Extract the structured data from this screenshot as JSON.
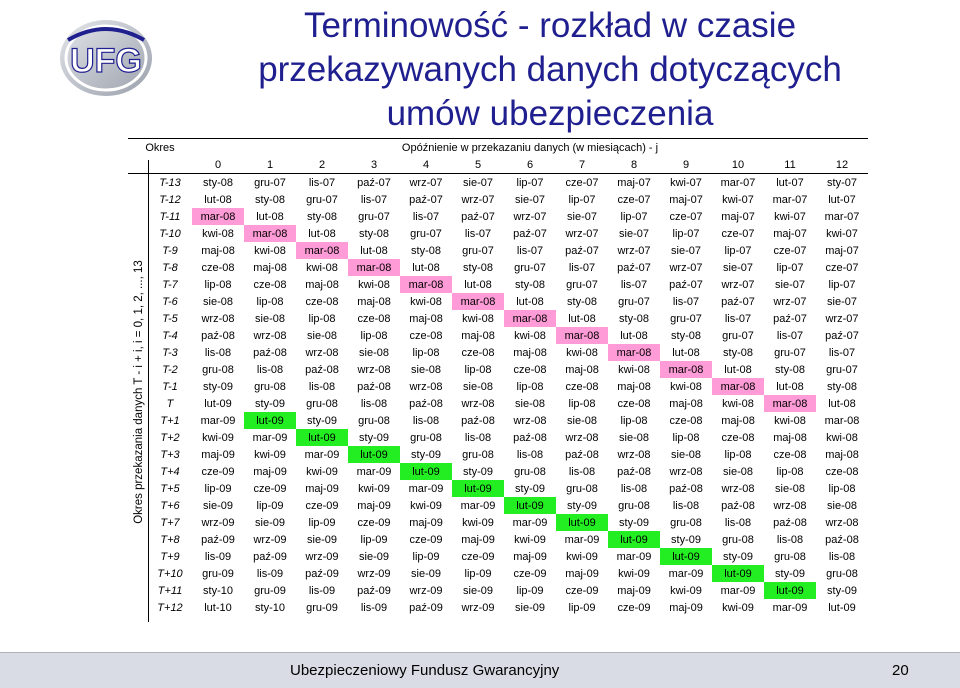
{
  "title_lines": [
    "Terminowość - rozkład w czasie",
    "przekazywanych danych dotyczących",
    "umów ubezpieczenia"
  ],
  "logo_text": "UFG",
  "colors": {
    "title": "#1f1f8f",
    "pink": "#ff9bd6",
    "green": "#22ee22"
  },
  "table": {
    "okres_header": "Okres",
    "delay_header": "Opóźnienie w przekazaniu danych (w miesiącach)  - j",
    "y_axis_label": "Okres przekazania danych T - i + i, i = 0, 1, 2, ..., 13",
    "columns": [
      "0",
      "1",
      "2",
      "3",
      "4",
      "5",
      "6",
      "7",
      "8",
      "9",
      "10",
      "11",
      "12"
    ],
    "rows": [
      {
        "label": "T-13",
        "cells": [
          "sty-08",
          "gru-07",
          "lis-07",
          "paź-07",
          "wrz-07",
          "sie-07",
          "lip-07",
          "cze-07",
          "maj-07",
          "kwi-07",
          "mar-07",
          "lut-07",
          "sty-07"
        ]
      },
      {
        "label": "T-12",
        "cells": [
          "lut-08",
          "sty-08",
          "gru-07",
          "lis-07",
          "paź-07",
          "wrz-07",
          "sie-07",
          "lip-07",
          "cze-07",
          "maj-07",
          "kwi-07",
          "mar-07",
          "lut-07"
        ]
      },
      {
        "label": "T-11",
        "cells": [
          "mar-08",
          "lut-08",
          "sty-08",
          "gru-07",
          "lis-07",
          "paź-07",
          "wrz-07",
          "sie-07",
          "lip-07",
          "cze-07",
          "maj-07",
          "kwi-07",
          "mar-07"
        ]
      },
      {
        "label": "T-10",
        "cells": [
          "kwi-08",
          "mar-08",
          "lut-08",
          "sty-08",
          "gru-07",
          "lis-07",
          "paź-07",
          "wrz-07",
          "sie-07",
          "lip-07",
          "cze-07",
          "maj-07",
          "kwi-07"
        ]
      },
      {
        "label": "T-9",
        "cells": [
          "maj-08",
          "kwi-08",
          "mar-08",
          "lut-08",
          "sty-08",
          "gru-07",
          "lis-07",
          "paź-07",
          "wrz-07",
          "sie-07",
          "lip-07",
          "cze-07",
          "maj-07"
        ]
      },
      {
        "label": "T-8",
        "cells": [
          "cze-08",
          "maj-08",
          "kwi-08",
          "mar-08",
          "lut-08",
          "sty-08",
          "gru-07",
          "lis-07",
          "paź-07",
          "wrz-07",
          "sie-07",
          "lip-07",
          "cze-07"
        ]
      },
      {
        "label": "T-7",
        "cells": [
          "lip-08",
          "cze-08",
          "maj-08",
          "kwi-08",
          "mar-08",
          "lut-08",
          "sty-08",
          "gru-07",
          "lis-07",
          "paź-07",
          "wrz-07",
          "sie-07",
          "lip-07"
        ]
      },
      {
        "label": "T-6",
        "cells": [
          "sie-08",
          "lip-08",
          "cze-08",
          "maj-08",
          "kwi-08",
          "mar-08",
          "lut-08",
          "sty-08",
          "gru-07",
          "lis-07",
          "paź-07",
          "wrz-07",
          "sie-07"
        ]
      },
      {
        "label": "T-5",
        "cells": [
          "wrz-08",
          "sie-08",
          "lip-08",
          "cze-08",
          "maj-08",
          "kwi-08",
          "mar-08",
          "lut-08",
          "sty-08",
          "gru-07",
          "lis-07",
          "paź-07",
          "wrz-07"
        ]
      },
      {
        "label": "T-4",
        "cells": [
          "paź-08",
          "wrz-08",
          "sie-08",
          "lip-08",
          "cze-08",
          "maj-08",
          "kwi-08",
          "mar-08",
          "lut-08",
          "sty-08",
          "gru-07",
          "lis-07",
          "paź-07"
        ]
      },
      {
        "label": "T-3",
        "cells": [
          "lis-08",
          "paź-08",
          "wrz-08",
          "sie-08",
          "lip-08",
          "cze-08",
          "maj-08",
          "kwi-08",
          "mar-08",
          "lut-08",
          "sty-08",
          "gru-07",
          "lis-07"
        ]
      },
      {
        "label": "T-2",
        "cells": [
          "gru-08",
          "lis-08",
          "paź-08",
          "wrz-08",
          "sie-08",
          "lip-08",
          "cze-08",
          "maj-08",
          "kwi-08",
          "mar-08",
          "lut-08",
          "sty-08",
          "gru-07"
        ]
      },
      {
        "label": "T-1",
        "cells": [
          "sty-09",
          "gru-08",
          "lis-08",
          "paź-08",
          "wrz-08",
          "sie-08",
          "lip-08",
          "cze-08",
          "maj-08",
          "kwi-08",
          "mar-08",
          "lut-08",
          "sty-08"
        ]
      },
      {
        "label": "T",
        "cells": [
          "lut-09",
          "sty-09",
          "gru-08",
          "lis-08",
          "paź-08",
          "wrz-08",
          "sie-08",
          "lip-08",
          "cze-08",
          "maj-08",
          "kwi-08",
          "mar-08",
          "lut-08"
        ]
      },
      {
        "label": "T+1",
        "cells": [
          "mar-09",
          "lut-09",
          "sty-09",
          "gru-08",
          "lis-08",
          "paź-08",
          "wrz-08",
          "sie-08",
          "lip-08",
          "cze-08",
          "maj-08",
          "kwi-08",
          "mar-08"
        ]
      },
      {
        "label": "T+2",
        "cells": [
          "kwi-09",
          "mar-09",
          "lut-09",
          "sty-09",
          "gru-08",
          "lis-08",
          "paź-08",
          "wrz-08",
          "sie-08",
          "lip-08",
          "cze-08",
          "maj-08",
          "kwi-08"
        ]
      },
      {
        "label": "T+3",
        "cells": [
          "maj-09",
          "kwi-09",
          "mar-09",
          "lut-09",
          "sty-09",
          "gru-08",
          "lis-08",
          "paź-08",
          "wrz-08",
          "sie-08",
          "lip-08",
          "cze-08",
          "maj-08"
        ]
      },
      {
        "label": "T+4",
        "cells": [
          "cze-09",
          "maj-09",
          "kwi-09",
          "mar-09",
          "lut-09",
          "sty-09",
          "gru-08",
          "lis-08",
          "paź-08",
          "wrz-08",
          "sie-08",
          "lip-08",
          "cze-08"
        ]
      },
      {
        "label": "T+5",
        "cells": [
          "lip-09",
          "cze-09",
          "maj-09",
          "kwi-09",
          "mar-09",
          "lut-09",
          "sty-09",
          "gru-08",
          "lis-08",
          "paź-08",
          "wrz-08",
          "sie-08",
          "lip-08"
        ]
      },
      {
        "label": "T+6",
        "cells": [
          "sie-09",
          "lip-09",
          "cze-09",
          "maj-09",
          "kwi-09",
          "mar-09",
          "lut-09",
          "sty-09",
          "gru-08",
          "lis-08",
          "paź-08",
          "wrz-08",
          "sie-08"
        ]
      },
      {
        "label": "T+7",
        "cells": [
          "wrz-09",
          "sie-09",
          "lip-09",
          "cze-09",
          "maj-09",
          "kwi-09",
          "mar-09",
          "lut-09",
          "sty-09",
          "gru-08",
          "lis-08",
          "paź-08",
          "wrz-08"
        ]
      },
      {
        "label": "T+8",
        "cells": [
          "paź-09",
          "wrz-09",
          "sie-09",
          "lip-09",
          "cze-09",
          "maj-09",
          "kwi-09",
          "mar-09",
          "lut-09",
          "sty-09",
          "gru-08",
          "lis-08",
          "paź-08"
        ]
      },
      {
        "label": "T+9",
        "cells": [
          "lis-09",
          "paź-09",
          "wrz-09",
          "sie-09",
          "lip-09",
          "cze-09",
          "maj-09",
          "kwi-09",
          "mar-09",
          "lut-09",
          "sty-09",
          "gru-08",
          "lis-08"
        ]
      },
      {
        "label": "T+10",
        "cells": [
          "gru-09",
          "lis-09",
          "paź-09",
          "wrz-09",
          "sie-09",
          "lip-09",
          "cze-09",
          "maj-09",
          "kwi-09",
          "mar-09",
          "lut-09",
          "sty-09",
          "gru-08"
        ]
      },
      {
        "label": "T+11",
        "cells": [
          "sty-10",
          "gru-09",
          "lis-09",
          "paź-09",
          "wrz-09",
          "sie-09",
          "lip-09",
          "cze-09",
          "maj-09",
          "kwi-09",
          "mar-09",
          "lut-09",
          "sty-09"
        ]
      },
      {
        "label": "T+12",
        "cells": [
          "lut-10",
          "sty-10",
          "gru-09",
          "lis-09",
          "paź-09",
          "wrz-09",
          "sie-09",
          "lip-09",
          "cze-09",
          "maj-09",
          "kwi-09",
          "mar-09",
          "lut-09"
        ]
      }
    ]
  },
  "footer": {
    "text": "Ubezpieczeniowy Fundusz Gwarancyjny",
    "page_number": "20"
  }
}
